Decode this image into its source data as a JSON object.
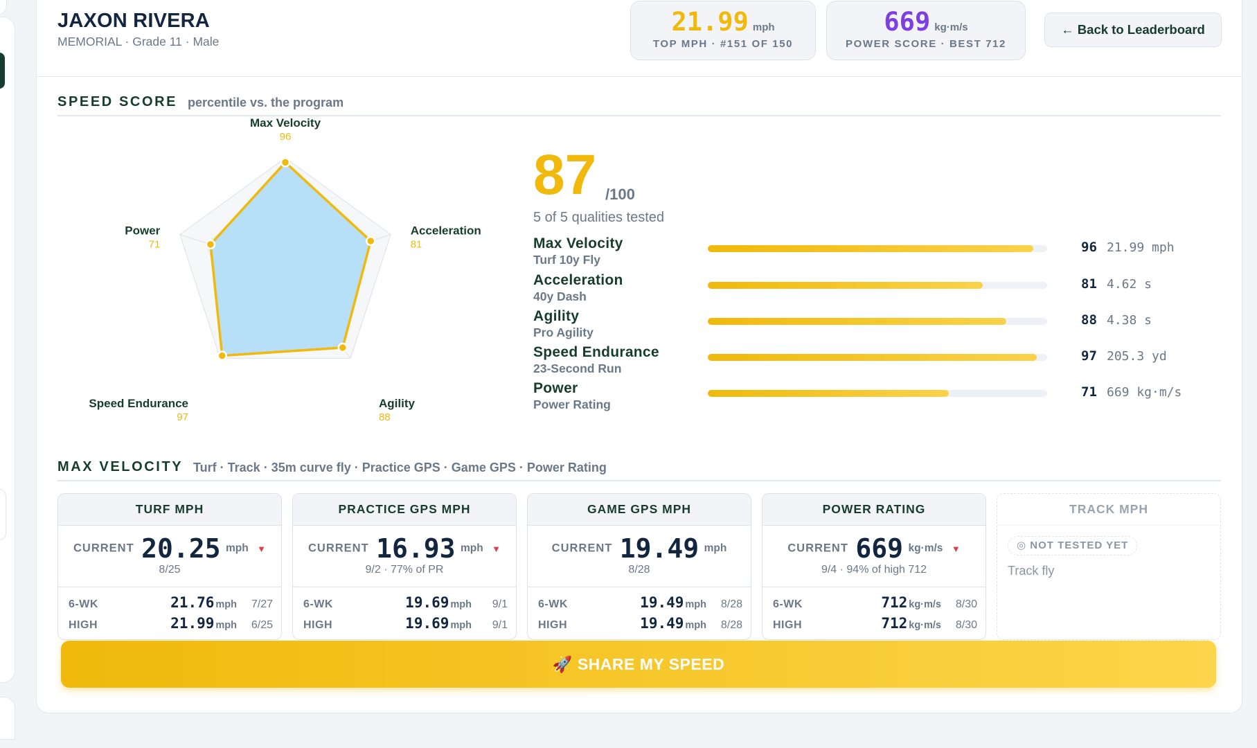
{
  "athlete": {
    "name": "JAXON RIVERA",
    "details": "MEMORIAL · Grade 11 · Male"
  },
  "stats": {
    "top_mph": {
      "value": "21.99",
      "unit": "mph",
      "caption": "TOP MPH · #151 OF 150",
      "color": "#f0b90b"
    },
    "power_score": {
      "value": "669",
      "unit": "kg·m/s",
      "caption": "POWER SCORE · BEST 712",
      "color": "#7b3fe4"
    }
  },
  "back_button": "← Back to Leaderboard",
  "speed_score": {
    "title": "SPEED SCORE",
    "subtitle": "percentile vs. the program",
    "score": "87",
    "out_of": "/100",
    "tested_caption": "5 of 5 qualities tested",
    "qualities": [
      {
        "name": "Max Velocity",
        "test": "Turf 10y Fly",
        "percentile": 96,
        "value": "21.99 mph"
      },
      {
        "name": "Acceleration",
        "test": "40y Dash",
        "percentile": 81,
        "value": "4.62 s"
      },
      {
        "name": "Agility",
        "test": "Pro Agility",
        "percentile": 88,
        "value": "4.38 s"
      },
      {
        "name": "Speed Endurance",
        "test": "23-Second Run",
        "percentile": 97,
        "value": "205.3 yd"
      },
      {
        "name": "Power",
        "test": "Power Rating",
        "percentile": 71,
        "value": "669 kg·m/s"
      }
    ]
  },
  "chart_data": {
    "type": "radar",
    "axes": [
      "Max Velocity",
      "Acceleration",
      "Agility",
      "Speed Endurance",
      "Power"
    ],
    "values": [
      96,
      81,
      88,
      97,
      71
    ],
    "range": [
      0,
      100
    ],
    "fill_color": "#b3ddf7",
    "line_color": "#f0b90b"
  },
  "max_velocity": {
    "title": "MAX VELOCITY",
    "subtitle": "Turf · Track · 35m curve fly · Practice GPS · Game GPS · Power Rating",
    "current_label": "CURRENT",
    "cards": [
      {
        "title": "TURF MPH",
        "current": "20.25",
        "unit": "mph",
        "down": true,
        "down_icon": "▼",
        "note": "8/25",
        "rows": [
          {
            "label": "6-WK",
            "value": "21.76",
            "unit": "mph",
            "date": "7/27"
          },
          {
            "label": "HIGH",
            "value": "21.99",
            "unit": "mph",
            "date": "6/25"
          }
        ]
      },
      {
        "title": "PRACTICE GPS MPH",
        "current": "16.93",
        "unit": "mph",
        "down": true,
        "down_icon": "▼",
        "note": "9/2 · 77% of PR",
        "rows": [
          {
            "label": "6-WK",
            "value": "19.69",
            "unit": "mph",
            "date": "9/1"
          },
          {
            "label": "HIGH",
            "value": "19.69",
            "unit": "mph",
            "date": "9/1"
          }
        ]
      },
      {
        "title": "GAME GPS MPH",
        "current": "19.49",
        "unit": "mph",
        "down": false,
        "down_icon": "",
        "note": "8/28",
        "rows": [
          {
            "label": "6-WK",
            "value": "19.49",
            "unit": "mph",
            "date": "8/28"
          },
          {
            "label": "HIGH",
            "value": "19.49",
            "unit": "mph",
            "date": "8/28"
          }
        ]
      },
      {
        "title": "POWER RATING",
        "current": "669",
        "unit": "kg·m/s",
        "down": true,
        "down_icon": "▼",
        "note": "9/4 · 94% of high 712",
        "rows": [
          {
            "label": "6-WK",
            "value": "712",
            "unit": "kg·m/s",
            "date": "8/30"
          },
          {
            "label": "HIGH",
            "value": "712",
            "unit": "kg·m/s",
            "date": "8/30"
          }
        ]
      }
    ],
    "empty_card": {
      "title": "TRACK MPH",
      "pill": "◎ NOT TESTED YET",
      "note": "Track fly"
    }
  },
  "share_button": "🚀 SHARE MY SPEED"
}
